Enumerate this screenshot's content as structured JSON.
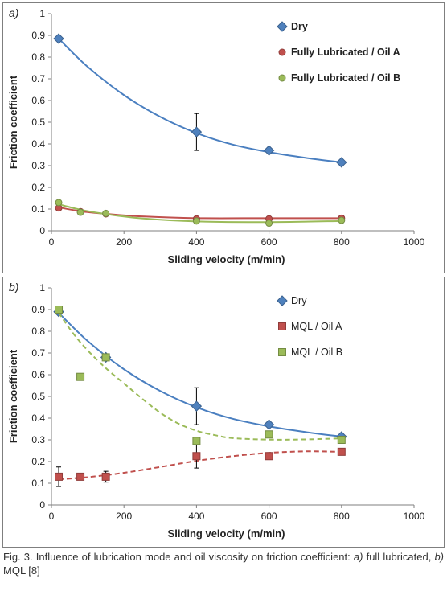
{
  "charts": [
    {
      "panel_label": "a)",
      "chart_data": {
        "type": "scatter",
        "xlabel": "Sliding velocity (m/min)",
        "ylabel": "Friction coefficient",
        "xlim": [
          0,
          1000
        ],
        "ylim": [
          0,
          1
        ],
        "xticks": [
          0,
          200,
          400,
          600,
          800,
          1000
        ],
        "yticks": [
          0,
          0.1,
          0.2,
          0.3,
          0.4,
          0.5,
          0.6,
          0.7,
          0.8,
          0.9,
          1
        ],
        "grid": false,
        "legend_position": "top-right",
        "series": [
          {
            "name": "Dry",
            "color": "#4f81bd",
            "marker": "diamond",
            "x": [
              20,
              400,
              600,
              800
            ],
            "y": [
              0.885,
              0.455,
              0.37,
              0.315
            ],
            "error": [
              null,
              0.085,
              null,
              null
            ],
            "trend_color": "#4a7fc0",
            "trend_style": "solid",
            "trend": [
              [
                20,
                0.885
              ],
              [
                100,
                0.755
              ],
              [
                200,
                0.625
              ],
              [
                300,
                0.525
              ],
              [
                400,
                0.45
              ],
              [
                500,
                0.397
              ],
              [
                600,
                0.362
              ],
              [
                700,
                0.336
              ],
              [
                800,
                0.315
              ]
            ]
          },
          {
            "name": "Fully Lubricated / Oil A",
            "color": "#c0504d",
            "marker": "circle",
            "x": [
              20,
              80,
              150,
              400,
              600,
              800
            ],
            "y": [
              0.105,
              0.088,
              0.078,
              0.055,
              0.055,
              0.058
            ],
            "error": [],
            "trend_color": "#c0504d",
            "trend_style": "solid",
            "trend": [
              [
                20,
                0.108
              ],
              [
                80,
                0.09
              ],
              [
                150,
                0.078
              ],
              [
                250,
                0.066
              ],
              [
                400,
                0.058
              ],
              [
                600,
                0.058
              ],
              [
                800,
                0.058
              ]
            ]
          },
          {
            "name": "Fully Lubricated / Oil B",
            "color": "#9bbb59",
            "marker": "circle",
            "x": [
              20,
              80,
              150,
              400,
              600,
              800
            ],
            "y": [
              0.13,
              0.085,
              0.08,
              0.045,
              0.035,
              0.048
            ],
            "error": [],
            "trend_color": "#9bbb59",
            "trend_style": "solid",
            "trend": [
              [
                20,
                0.122
              ],
              [
                80,
                0.097
              ],
              [
                150,
                0.077
              ],
              [
                250,
                0.057
              ],
              [
                400,
                0.043
              ],
              [
                600,
                0.04
              ],
              [
                800,
                0.045
              ]
            ]
          }
        ]
      }
    },
    {
      "panel_label": "b)",
      "chart_data": {
        "type": "scatter",
        "xlabel": "Sliding velocity (m/min)",
        "ylabel": "Friction coefficient",
        "xlim": [
          0,
          1000
        ],
        "ylim": [
          0,
          1
        ],
        "xticks": [
          0,
          200,
          400,
          600,
          800,
          1000
        ],
        "yticks": [
          0,
          0.1,
          0.2,
          0.3,
          0.4,
          0.5,
          0.6,
          0.7,
          0.8,
          0.9,
          1
        ],
        "grid": false,
        "legend_position": "top-right",
        "series": [
          {
            "name": "Dry",
            "color": "#4f81bd",
            "marker": "diamond",
            "x": [
              20,
              150,
              400,
              600,
              800
            ],
            "y": [
              0.89,
              0.68,
              0.455,
              0.37,
              0.315
            ],
            "error": [
              null,
              null,
              0.085,
              null,
              null
            ],
            "trend_color": "#4a7fc0",
            "trend_style": "solid",
            "trend": [
              [
                20,
                0.885
              ],
              [
                100,
                0.755
              ],
              [
                200,
                0.625
              ],
              [
                300,
                0.525
              ],
              [
                400,
                0.45
              ],
              [
                500,
                0.397
              ],
              [
                600,
                0.362
              ],
              [
                700,
                0.336
              ],
              [
                800,
                0.315
              ]
            ]
          },
          {
            "name": "MQL / Oil A",
            "color": "#c0504d",
            "marker": "square",
            "x": [
              20,
              80,
              150,
              400,
              600,
              800
            ],
            "y": [
              0.13,
              0.13,
              0.13,
              0.225,
              0.225,
              0.245
            ],
            "error": [
              0.045,
              null,
              0.025,
              0.055,
              null,
              null
            ],
            "trend_color": "#c0504d",
            "trend_style": "dashed",
            "trend": [
              [
                20,
                0.118
              ],
              [
                100,
                0.128
              ],
              [
                200,
                0.148
              ],
              [
                300,
                0.175
              ],
              [
                400,
                0.203
              ],
              [
                500,
                0.225
              ],
              [
                600,
                0.24
              ],
              [
                700,
                0.247
              ],
              [
                800,
                0.245
              ]
            ]
          },
          {
            "name": "MQL / Oil B",
            "color": "#9bbb59",
            "marker": "square",
            "x": [
              20,
              80,
              150,
              400,
              600,
              800
            ],
            "y": [
              0.9,
              0.59,
              0.68,
              0.295,
              0.325,
              0.3
            ],
            "error": [],
            "trend_color": "#9bbb59",
            "trend_style": "dashed",
            "trend": [
              [
                20,
                0.885
              ],
              [
                60,
                0.79
              ],
              [
                100,
                0.712
              ],
              [
                150,
                0.63
              ],
              [
                200,
                0.56
              ],
              [
                250,
                0.49
              ],
              [
                300,
                0.425
              ],
              [
                350,
                0.375
              ],
              [
                400,
                0.342
              ],
              [
                450,
                0.322
              ],
              [
                500,
                0.308
              ],
              [
                600,
                0.301
              ],
              [
                700,
                0.302
              ],
              [
                800,
                0.307
              ]
            ]
          }
        ]
      }
    }
  ],
  "caption": {
    "prefix": "Fig. 3. Influence of lubrication mode and oil viscosity on friction coefficient: ",
    "a_label": "a)",
    "a_text": " full lubricated, ",
    "b_label": "b)",
    "b_text": " MQL [8]"
  }
}
